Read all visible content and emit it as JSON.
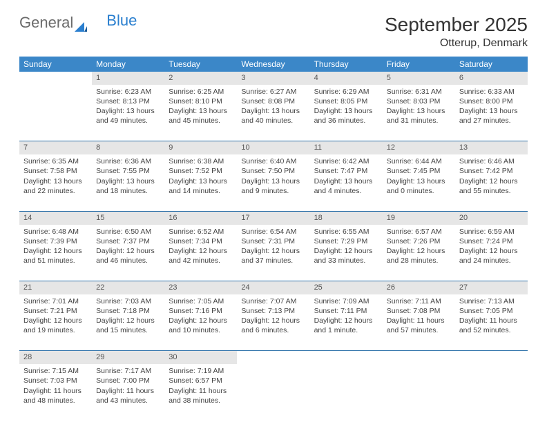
{
  "brand": {
    "part1": "General",
    "part2": "Blue"
  },
  "title": "September 2025",
  "location": "Otterup, Denmark",
  "colors": {
    "header_bg": "#3b87c8",
    "header_text": "#ffffff",
    "daynum_bg": "#e6e6e6",
    "row_divider": "#2a6fa8",
    "brand_gray": "#6b6b6b",
    "brand_blue": "#2a7fcf",
    "text": "#444444",
    "background": "#ffffff"
  },
  "weekdays": [
    "Sunday",
    "Monday",
    "Tuesday",
    "Wednesday",
    "Thursday",
    "Friday",
    "Saturday"
  ],
  "weeks": [
    {
      "days": [
        null,
        {
          "n": "1",
          "sr": "Sunrise: 6:23 AM",
          "ss": "Sunset: 8:13 PM",
          "d1": "Daylight: 13 hours",
          "d2": "and 49 minutes."
        },
        {
          "n": "2",
          "sr": "Sunrise: 6:25 AM",
          "ss": "Sunset: 8:10 PM",
          "d1": "Daylight: 13 hours",
          "d2": "and 45 minutes."
        },
        {
          "n": "3",
          "sr": "Sunrise: 6:27 AM",
          "ss": "Sunset: 8:08 PM",
          "d1": "Daylight: 13 hours",
          "d2": "and 40 minutes."
        },
        {
          "n": "4",
          "sr": "Sunrise: 6:29 AM",
          "ss": "Sunset: 8:05 PM",
          "d1": "Daylight: 13 hours",
          "d2": "and 36 minutes."
        },
        {
          "n": "5",
          "sr": "Sunrise: 6:31 AM",
          "ss": "Sunset: 8:03 PM",
          "d1": "Daylight: 13 hours",
          "d2": "and 31 minutes."
        },
        {
          "n": "6",
          "sr": "Sunrise: 6:33 AM",
          "ss": "Sunset: 8:00 PM",
          "d1": "Daylight: 13 hours",
          "d2": "and 27 minutes."
        }
      ]
    },
    {
      "days": [
        {
          "n": "7",
          "sr": "Sunrise: 6:35 AM",
          "ss": "Sunset: 7:58 PM",
          "d1": "Daylight: 13 hours",
          "d2": "and 22 minutes."
        },
        {
          "n": "8",
          "sr": "Sunrise: 6:36 AM",
          "ss": "Sunset: 7:55 PM",
          "d1": "Daylight: 13 hours",
          "d2": "and 18 minutes."
        },
        {
          "n": "9",
          "sr": "Sunrise: 6:38 AM",
          "ss": "Sunset: 7:52 PM",
          "d1": "Daylight: 13 hours",
          "d2": "and 14 minutes."
        },
        {
          "n": "10",
          "sr": "Sunrise: 6:40 AM",
          "ss": "Sunset: 7:50 PM",
          "d1": "Daylight: 13 hours",
          "d2": "and 9 minutes."
        },
        {
          "n": "11",
          "sr": "Sunrise: 6:42 AM",
          "ss": "Sunset: 7:47 PM",
          "d1": "Daylight: 13 hours",
          "d2": "and 4 minutes."
        },
        {
          "n": "12",
          "sr": "Sunrise: 6:44 AM",
          "ss": "Sunset: 7:45 PM",
          "d1": "Daylight: 13 hours",
          "d2": "and 0 minutes."
        },
        {
          "n": "13",
          "sr": "Sunrise: 6:46 AM",
          "ss": "Sunset: 7:42 PM",
          "d1": "Daylight: 12 hours",
          "d2": "and 55 minutes."
        }
      ]
    },
    {
      "days": [
        {
          "n": "14",
          "sr": "Sunrise: 6:48 AM",
          "ss": "Sunset: 7:39 PM",
          "d1": "Daylight: 12 hours",
          "d2": "and 51 minutes."
        },
        {
          "n": "15",
          "sr": "Sunrise: 6:50 AM",
          "ss": "Sunset: 7:37 PM",
          "d1": "Daylight: 12 hours",
          "d2": "and 46 minutes."
        },
        {
          "n": "16",
          "sr": "Sunrise: 6:52 AM",
          "ss": "Sunset: 7:34 PM",
          "d1": "Daylight: 12 hours",
          "d2": "and 42 minutes."
        },
        {
          "n": "17",
          "sr": "Sunrise: 6:54 AM",
          "ss": "Sunset: 7:31 PM",
          "d1": "Daylight: 12 hours",
          "d2": "and 37 minutes."
        },
        {
          "n": "18",
          "sr": "Sunrise: 6:55 AM",
          "ss": "Sunset: 7:29 PM",
          "d1": "Daylight: 12 hours",
          "d2": "and 33 minutes."
        },
        {
          "n": "19",
          "sr": "Sunrise: 6:57 AM",
          "ss": "Sunset: 7:26 PM",
          "d1": "Daylight: 12 hours",
          "d2": "and 28 minutes."
        },
        {
          "n": "20",
          "sr": "Sunrise: 6:59 AM",
          "ss": "Sunset: 7:24 PM",
          "d1": "Daylight: 12 hours",
          "d2": "and 24 minutes."
        }
      ]
    },
    {
      "days": [
        {
          "n": "21",
          "sr": "Sunrise: 7:01 AM",
          "ss": "Sunset: 7:21 PM",
          "d1": "Daylight: 12 hours",
          "d2": "and 19 minutes."
        },
        {
          "n": "22",
          "sr": "Sunrise: 7:03 AM",
          "ss": "Sunset: 7:18 PM",
          "d1": "Daylight: 12 hours",
          "d2": "and 15 minutes."
        },
        {
          "n": "23",
          "sr": "Sunrise: 7:05 AM",
          "ss": "Sunset: 7:16 PM",
          "d1": "Daylight: 12 hours",
          "d2": "and 10 minutes."
        },
        {
          "n": "24",
          "sr": "Sunrise: 7:07 AM",
          "ss": "Sunset: 7:13 PM",
          "d1": "Daylight: 12 hours",
          "d2": "and 6 minutes."
        },
        {
          "n": "25",
          "sr": "Sunrise: 7:09 AM",
          "ss": "Sunset: 7:11 PM",
          "d1": "Daylight: 12 hours",
          "d2": "and 1 minute."
        },
        {
          "n": "26",
          "sr": "Sunrise: 7:11 AM",
          "ss": "Sunset: 7:08 PM",
          "d1": "Daylight: 11 hours",
          "d2": "and 57 minutes."
        },
        {
          "n": "27",
          "sr": "Sunrise: 7:13 AM",
          "ss": "Sunset: 7:05 PM",
          "d1": "Daylight: 11 hours",
          "d2": "and 52 minutes."
        }
      ]
    },
    {
      "days": [
        {
          "n": "28",
          "sr": "Sunrise: 7:15 AM",
          "ss": "Sunset: 7:03 PM",
          "d1": "Daylight: 11 hours",
          "d2": "and 48 minutes."
        },
        {
          "n": "29",
          "sr": "Sunrise: 7:17 AM",
          "ss": "Sunset: 7:00 PM",
          "d1": "Daylight: 11 hours",
          "d2": "and 43 minutes."
        },
        {
          "n": "30",
          "sr": "Sunrise: 7:19 AM",
          "ss": "Sunset: 6:57 PM",
          "d1": "Daylight: 11 hours",
          "d2": "and 38 minutes."
        },
        null,
        null,
        null,
        null
      ]
    }
  ]
}
